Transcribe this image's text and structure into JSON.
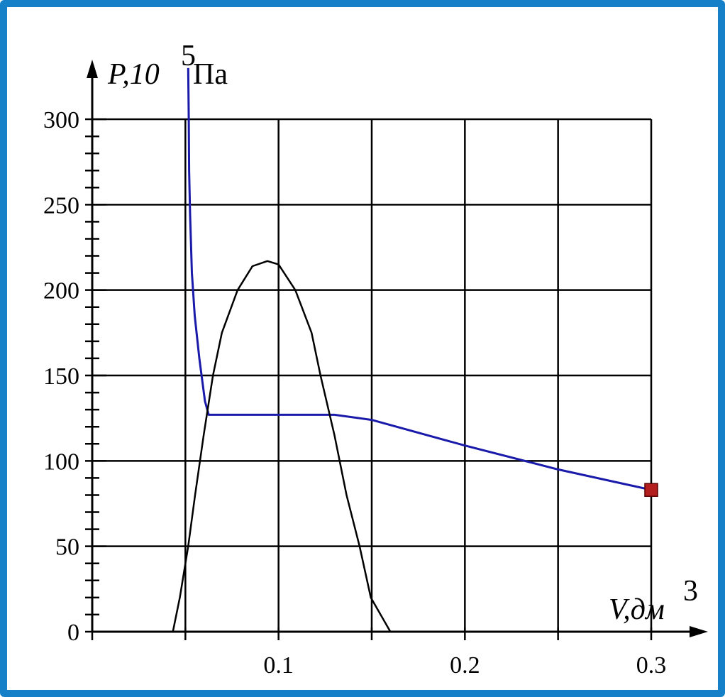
{
  "chart_data": {
    "type": "line",
    "xlabel": "V,дм",
    "xlabel_sup": "3",
    "ylabel": "P,10",
    "ylabel_sup": "5",
    "ylabel_unit": "Па",
    "xlim": [
      0,
      0.3
    ],
    "ylim": [
      0,
      300
    ],
    "x_ticks": [
      0.1,
      0.2,
      0.3
    ],
    "x_tick_labels": [
      "0.1",
      "0.2",
      "0.3"
    ],
    "y_ticks": [
      0,
      50,
      100,
      150,
      200,
      250,
      300
    ],
    "y_tick_labels": [
      "0",
      "50",
      "100",
      "150",
      "200",
      "250",
      "300"
    ],
    "grid": true,
    "series": [
      {
        "color": "#1a1aaa",
        "marker_end": true,
        "marker_color": "#b21e1e",
        "points": [
          [
            0.0515,
            330
          ],
          [
            0.0518,
            300
          ],
          [
            0.052,
            270
          ],
          [
            0.0525,
            245
          ],
          [
            0.0535,
            210
          ],
          [
            0.055,
            185
          ],
          [
            0.0575,
            160
          ],
          [
            0.0605,
            135
          ],
          [
            0.0625,
            127
          ],
          [
            0.09,
            127
          ],
          [
            0.13,
            127
          ],
          [
            0.15,
            124
          ],
          [
            0.2,
            109
          ],
          [
            0.25,
            95
          ],
          [
            0.3,
            83
          ]
        ]
      },
      {
        "color": "#000000",
        "points": [
          [
            0.0433,
            0
          ],
          [
            0.047,
            20
          ],
          [
            0.0515,
            50
          ],
          [
            0.0552,
            80
          ],
          [
            0.0598,
            115
          ],
          [
            0.0648,
            150
          ],
          [
            0.0696,
            175
          ],
          [
            0.078,
            200
          ],
          [
            0.086,
            214
          ],
          [
            0.094,
            217
          ],
          [
            0.1,
            215
          ],
          [
            0.109,
            200
          ],
          [
            0.1177,
            175
          ],
          [
            0.1225,
            150
          ],
          [
            0.13,
            115
          ],
          [
            0.1365,
            80
          ],
          [
            0.1435,
            50
          ],
          [
            0.1495,
            20
          ],
          [
            0.16,
            0
          ]
        ]
      }
    ]
  }
}
